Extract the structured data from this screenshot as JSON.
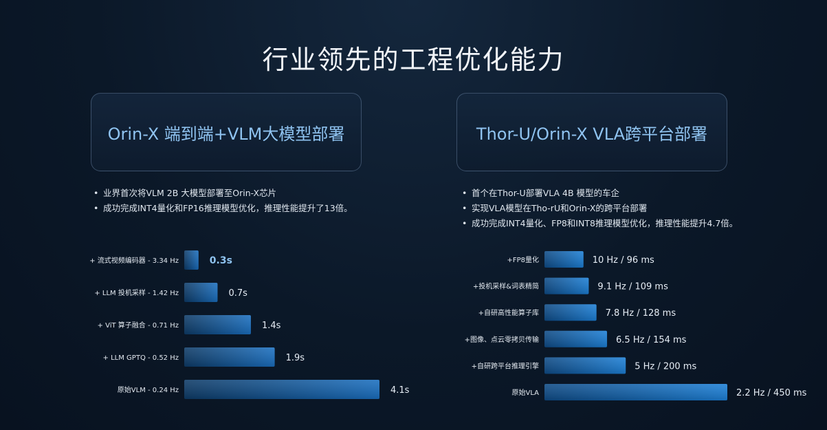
{
  "title": "行业领先的工程优化能力",
  "left_card": {
    "title": "Orin-X 端到端+VLM大模型部署",
    "bullets": [
      "业界首次将VLM 2B 大模型部署至Orin-X芯片",
      "成功完成INT4量化和FP16推理模型优化，推理性能提升了13倍。"
    ]
  },
  "right_card": {
    "title": "Thor-U/Orin-X VLA跨平台部署",
    "bullets": [
      "首个在Thor-U部署VLA 4B 模型的车企",
      "实现VLA模型在Tho-rU和Orin-X的跨平台部署",
      "成功完成INT4量化、FP8和INT8推理模型优化，推理性能提升4.7倍。"
    ]
  },
  "chart_data": [
    {
      "type": "bar",
      "orientation": "horizontal",
      "categories": [
        "+ 流式视频编码器 - 3.34 Hz",
        "+ LLM 投机采样 - 1.42 Hz",
        "+ ViT 算子融合 - 0.71 Hz",
        "+ LLM GPTQ - 0.52 Hz",
        "原始VLM - 0.24 Hz"
      ],
      "values": [
        0.3,
        0.7,
        1.4,
        1.9,
        4.1
      ],
      "value_labels": [
        "0.3s",
        "0.7s",
        "1.4s",
        "1.9s",
        "4.1s"
      ],
      "highlight_index": 0,
      "title": "",
      "xlabel": "",
      "ylabel": "",
      "xlim": [
        0,
        4.1
      ],
      "colors": {
        "bar_start": "#1a6fc0",
        "bar_end": "#0d3a66",
        "highlight_text": "#8fc3f0"
      }
    },
    {
      "type": "bar",
      "orientation": "horizontal",
      "categories": [
        "+FP8量化",
        "+投机采样&词表精简",
        "+自研高性能算子库",
        "+图像、点云零拷贝传输",
        "+自研跨平台推理引擎",
        "原始VLA"
      ],
      "values": [
        96,
        109,
        128,
        154,
        200,
        450
      ],
      "value_labels": [
        "10 Hz / 96 ms",
        "9.1 Hz / 109 ms",
        "7.8 Hz / 128 ms",
        "6.5 Hz / 154 ms",
        "5 Hz / 200 ms",
        "2.2 Hz / 450 ms"
      ],
      "title": "",
      "xlabel": "",
      "ylabel": "",
      "xlim": [
        0,
        450
      ],
      "colors": {
        "bar_start": "#1c7fd6",
        "bar_end": "#0e4a85"
      }
    }
  ]
}
